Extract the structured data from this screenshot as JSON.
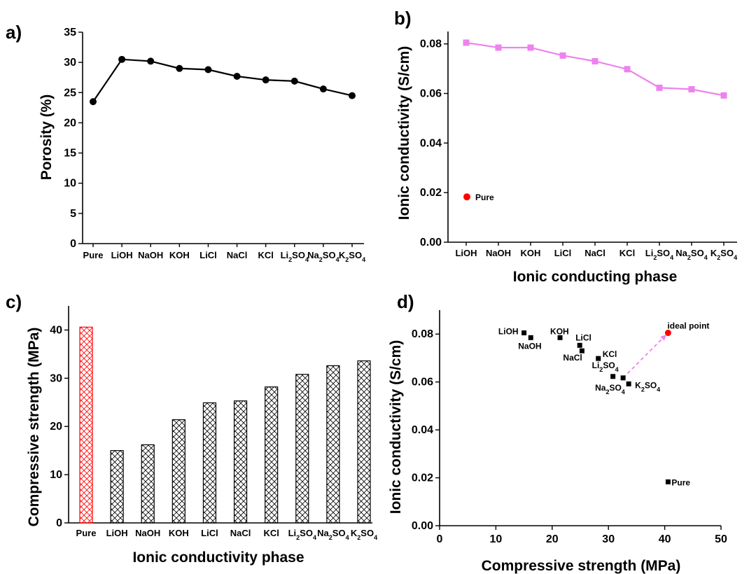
{
  "chart_data": [
    {
      "panel": "a)",
      "type": "line",
      "categories": [
        "Pure",
        "LiOH",
        "NaOH",
        "KOH",
        "LiCl",
        "NaCl",
        "KCl",
        "Li2SO4",
        "Na2SO4",
        "K2SO4"
      ],
      "series": [
        {
          "values": [
            23.5,
            30.5,
            30.2,
            29.0,
            28.8,
            27.7,
            27.1,
            26.9,
            25.6,
            24.5
          ],
          "color": "#000000",
          "marker": "circle"
        }
      ],
      "xlabel": "",
      "ylabel": "Porosity (%)",
      "ylim": [
        0,
        35
      ],
      "yticks": [
        0,
        5,
        10,
        15,
        20,
        25,
        30,
        35
      ],
      "grid": false
    },
    {
      "panel": "b)",
      "type": "line",
      "categories": [
        "LiOH",
        "NaOH",
        "KOH",
        "LiCl",
        "NaCl",
        "KCl",
        "Li2SO4",
        "Na2SO4",
        "K2SO4"
      ],
      "series": [
        {
          "values": [
            0.0805,
            0.0785,
            0.0785,
            0.0753,
            0.073,
            0.0698,
            0.0623,
            0.0617,
            0.0592
          ],
          "color": "#ee82ee",
          "marker": "square"
        }
      ],
      "annotations": [
        {
          "label": "Pure",
          "value": 0.0183,
          "color": "#ff0000",
          "marker": "circle"
        }
      ],
      "xlabel": "Ionic conducting phase",
      "ylabel": "Ionic conductivity (S/cm)",
      "ylim": [
        0,
        0.085
      ],
      "yticks": [
        0.0,
        0.02,
        0.04,
        0.06,
        0.08
      ],
      "grid": false
    },
    {
      "panel": "c)",
      "type": "bar",
      "categories": [
        "Pure",
        "LiOH",
        "NaOH",
        "KOH",
        "LiCl",
        "NaCl",
        "KCl",
        "Li2SO4",
        "Na2SO4",
        "K2SO4"
      ],
      "values": [
        40.6,
        15.0,
        16.2,
        21.4,
        24.9,
        25.3,
        28.2,
        30.8,
        32.6,
        33.6
      ],
      "bar_colors": [
        "#ff0000",
        "#000000",
        "#000000",
        "#000000",
        "#000000",
        "#000000",
        "#000000",
        "#000000",
        "#000000",
        "#000000"
      ],
      "hatch": "crosshatch",
      "xlabel": "Ionic conductivity phase",
      "ylabel": "Compressive strength (MPa)",
      "ylim": [
        0,
        45
      ],
      "yticks": [
        0,
        10,
        20,
        30,
        40
      ],
      "grid": false
    },
    {
      "panel": "d)",
      "type": "scatter",
      "points": [
        {
          "label": "LiOH",
          "x": 15.0,
          "y": 0.0805
        },
        {
          "label": "NaOH",
          "x": 16.2,
          "y": 0.0785
        },
        {
          "label": "KOH",
          "x": 21.4,
          "y": 0.0785
        },
        {
          "label": "LiCl",
          "x": 24.9,
          "y": 0.0753
        },
        {
          "label": "NaCl",
          "x": 25.3,
          "y": 0.073
        },
        {
          "label": "KCl",
          "x": 28.2,
          "y": 0.0698
        },
        {
          "label": "Li2SO4",
          "x": 30.8,
          "y": 0.0623
        },
        {
          "label": "Na2SO4",
          "x": 32.6,
          "y": 0.0617
        },
        {
          "label": "K2SO4",
          "x": 33.6,
          "y": 0.0592
        },
        {
          "label": "Pure",
          "x": 40.6,
          "y": 0.0183
        }
      ],
      "ideal_point": {
        "label": "ideal point",
        "x": 40.6,
        "y": 0.0805,
        "color": "#ff0000"
      },
      "arrow": {
        "from": {
          "x": 32.6,
          "y": 0.0617
        },
        "to": {
          "x": 40.6,
          "y": 0.0805
        },
        "color": "#ee82ee",
        "style": "dashed"
      },
      "xlabel": "Compressive strength (MPa)",
      "ylabel": "Ionic conductivity (S/cm)",
      "xlim": [
        0,
        50
      ],
      "ylim": [
        0,
        0.09
      ],
      "xticks": [
        0,
        10,
        20,
        30,
        40,
        50
      ],
      "yticks": [
        0.0,
        0.02,
        0.04,
        0.06,
        0.08
      ],
      "grid": false
    }
  ]
}
